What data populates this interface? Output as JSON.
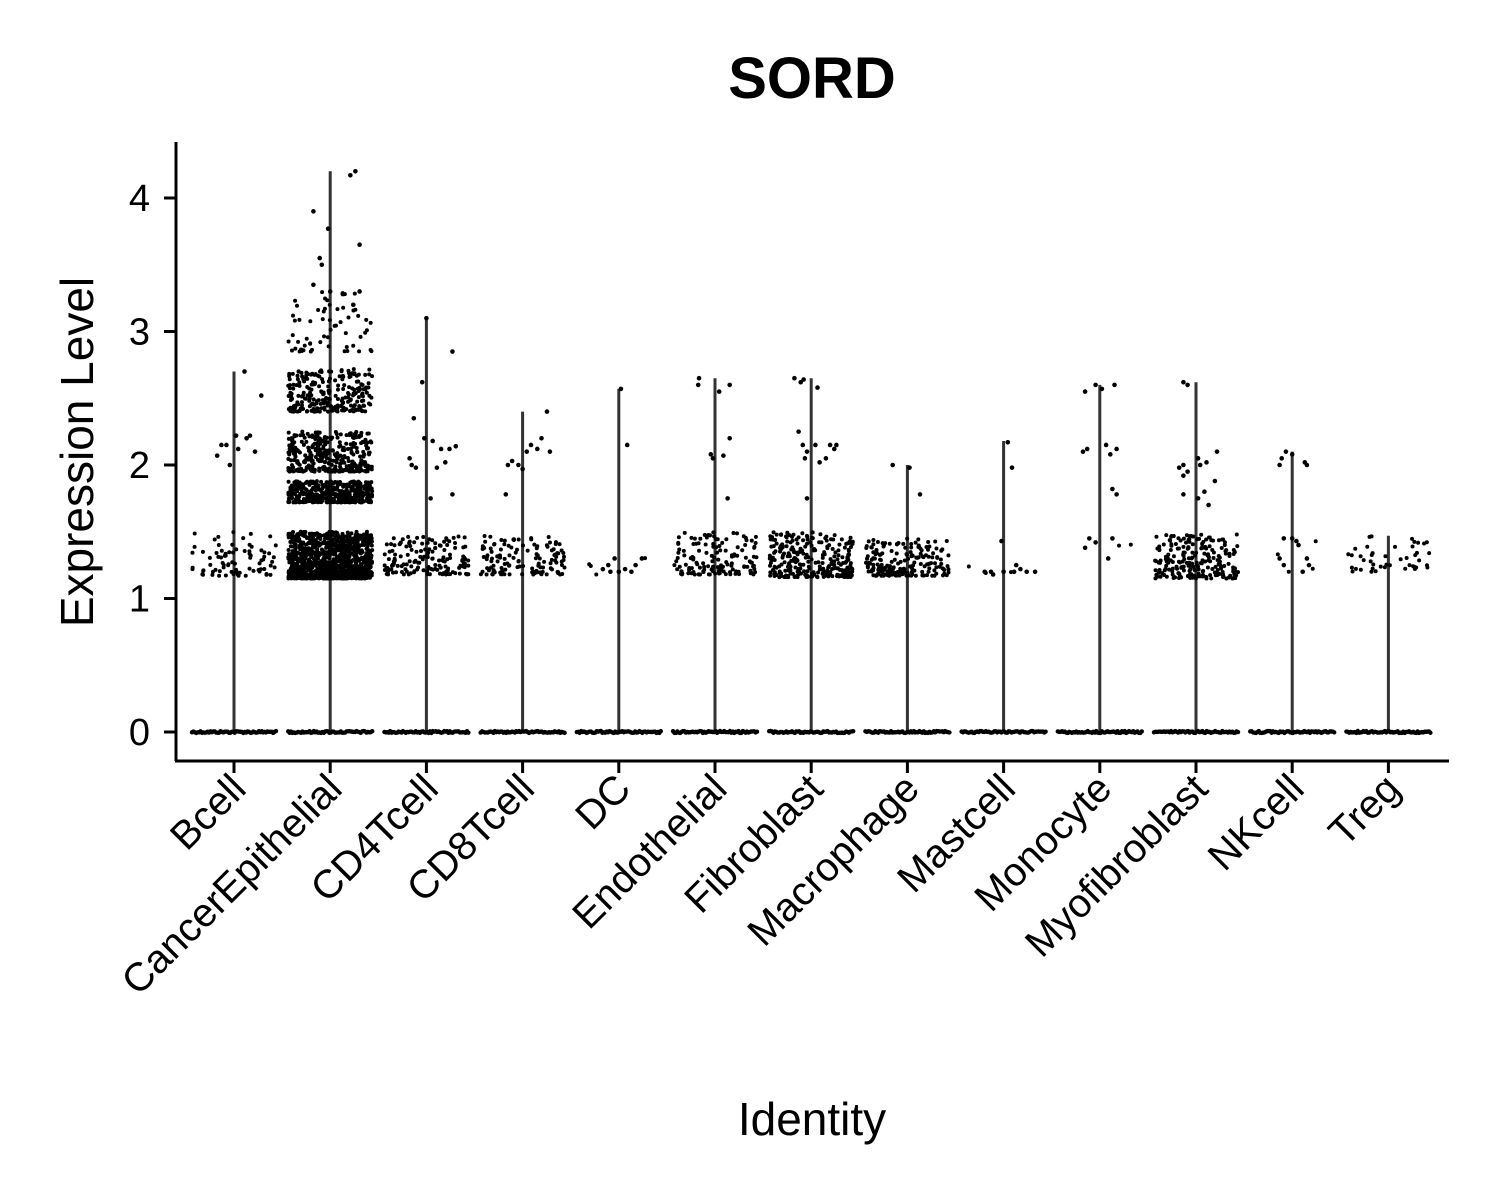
{
  "chart_data": {
    "type": "violin",
    "title": "SORD",
    "xlabel": "Identity",
    "ylabel": "Expression Level",
    "ylim": [
      -0.2,
      4.4
    ],
    "yticks": [
      0,
      1,
      2,
      3,
      4
    ],
    "grid": false,
    "legend": "none",
    "point_color": "#000000",
    "violin_color": "#333333",
    "categories": [
      "Bcell",
      "CancerEpithelial",
      "CD4Tcell",
      "CD8Tcell",
      "DC",
      "Endothelial",
      "Fibroblast",
      "Macrophage",
      "Mastcell",
      "Monocyte",
      "Myofibroblast",
      "NKcell",
      "Treg"
    ],
    "groups": [
      {
        "name": "Bcell",
        "max": 2.7,
        "points": [
          [
            0.25,
            2.7
          ],
          [
            -0.4,
            2.07
          ],
          [
            -0.3,
            2.15
          ],
          [
            -0.18,
            2.15
          ],
          [
            0.05,
            2.22
          ],
          [
            0.3,
            2.2
          ],
          [
            0.38,
            2.22
          ],
          [
            0.5,
            2.1
          ],
          [
            0.65,
            2.52
          ],
          [
            -0.1,
            2.0
          ],
          [
            0.1,
            2.12
          ]
        ],
        "cluster": {
          "lo": 1.17,
          "hi": 1.5,
          "n": 80
        }
      },
      {
        "name": "CancerEpithelial",
        "max": 4.2,
        "points": [
          [
            0.6,
            4.2
          ],
          [
            0.48,
            4.17
          ],
          [
            -0.4,
            3.9
          ],
          [
            -0.05,
            3.77
          ],
          [
            0.7,
            3.65
          ],
          [
            -0.2,
            3.5
          ],
          [
            -0.25,
            3.55
          ],
          [
            -0.4,
            3.35
          ],
          [
            0.0,
            3.3
          ],
          [
            0.3,
            3.28
          ],
          [
            0.55,
            3.2
          ],
          [
            0.7,
            3.3
          ]
        ],
        "clusters": [
          {
            "lo": 2.85,
            "hi": 3.3,
            "n": 60
          },
          {
            "lo": 2.4,
            "hi": 2.72,
            "n": 250
          },
          {
            "lo": 1.95,
            "hi": 2.25,
            "n": 350
          },
          {
            "lo": 1.72,
            "hi": 1.88,
            "n": 450
          },
          {
            "lo": 1.15,
            "hi": 1.5,
            "n": 1100
          }
        ]
      },
      {
        "name": "CD4Tcell",
        "max": 3.1,
        "points": [
          [
            0.0,
            3.1
          ],
          [
            0.62,
            2.85
          ],
          [
            -0.1,
            2.62
          ],
          [
            -0.3,
            2.35
          ],
          [
            -0.05,
            2.2
          ],
          [
            0.15,
            2.18
          ],
          [
            0.35,
            2.12
          ],
          [
            0.55,
            2.12
          ],
          [
            0.7,
            2.14
          ],
          [
            -0.4,
            2.05
          ],
          [
            -0.35,
            2.0
          ],
          [
            -0.25,
            1.98
          ],
          [
            0.25,
            1.98
          ],
          [
            0.45,
            2.02
          ],
          [
            0.1,
            1.75
          ],
          [
            0.62,
            1.78
          ]
        ],
        "cluster": {
          "lo": 1.18,
          "hi": 1.47,
          "n": 150
        }
      },
      {
        "name": "CD8Tcell",
        "max": 2.4,
        "points": [
          [
            0.58,
            2.4
          ],
          [
            0.45,
            2.2
          ],
          [
            0.2,
            2.15
          ],
          [
            0.35,
            2.12
          ],
          [
            0.1,
            2.1
          ],
          [
            0.65,
            2.1
          ],
          [
            -0.35,
            2.0
          ],
          [
            -0.25,
            2.03
          ],
          [
            -0.1,
            2.0
          ],
          [
            0.0,
            1.97
          ],
          [
            -0.4,
            1.78
          ]
        ],
        "cluster": {
          "lo": 1.18,
          "hi": 1.47,
          "n": 130
        }
      },
      {
        "name": "DC",
        "max": 2.57,
        "points": [
          [
            0.05,
            2.57
          ],
          [
            0.2,
            2.15
          ],
          [
            -0.38,
            1.22
          ],
          [
            -0.25,
            1.25
          ],
          [
            -0.2,
            1.2
          ],
          [
            -0.1,
            1.3
          ],
          [
            0.0,
            1.2
          ],
          [
            0.15,
            1.22
          ],
          [
            0.3,
            1.2
          ],
          [
            0.4,
            1.25
          ],
          [
            0.55,
            1.3
          ]
        ],
        "cluster": {
          "lo": 1.18,
          "hi": 1.32,
          "n": 4
        }
      },
      {
        "name": "Endothelial",
        "max": 2.65,
        "points": [
          [
            -0.38,
            2.65
          ],
          [
            -0.4,
            2.6
          ],
          [
            0.1,
            2.55
          ],
          [
            0.35,
            2.6
          ],
          [
            0.35,
            2.2
          ],
          [
            -0.1,
            2.08
          ],
          [
            -0.05,
            2.05
          ],
          [
            0.2,
            2.07
          ],
          [
            0.3,
            1.75
          ]
        ],
        "cluster": {
          "lo": 1.18,
          "hi": 1.5,
          "n": 140
        }
      },
      {
        "name": "Fibroblast",
        "max": 2.65,
        "points": [
          [
            -0.4,
            2.65
          ],
          [
            -0.25,
            2.62
          ],
          [
            -0.18,
            2.64
          ],
          [
            0.15,
            2.58
          ],
          [
            -0.3,
            2.25
          ],
          [
            -0.2,
            2.15
          ],
          [
            -0.15,
            2.05
          ],
          [
            -0.1,
            2.1
          ],
          [
            0.1,
            2.15
          ],
          [
            0.2,
            2.02
          ],
          [
            0.35,
            2.05
          ],
          [
            0.45,
            2.15
          ],
          [
            0.55,
            2.12
          ],
          [
            0.6,
            2.15
          ],
          [
            -0.1,
            1.75
          ]
        ],
        "cluster": {
          "lo": 1.16,
          "hi": 1.5,
          "n": 280
        }
      },
      {
        "name": "Macrophage",
        "max": 2.0,
        "points": [
          [
            -0.35,
            2.0
          ],
          [
            0.05,
            1.98
          ],
          [
            0.3,
            1.78
          ]
        ],
        "cluster": {
          "lo": 1.17,
          "hi": 1.45,
          "n": 190
        }
      },
      {
        "name": "Mastcell",
        "max": 2.18,
        "points": [
          [
            0.1,
            2.17
          ],
          [
            0.2,
            1.98
          ],
          [
            -0.45,
            1.2
          ],
          [
            -0.3,
            1.2
          ],
          [
            -0.25,
            1.18
          ],
          [
            -0.05,
            1.43
          ],
          [
            0.0,
            1.2
          ],
          [
            0.25,
            1.2
          ],
          [
            0.3,
            1.25
          ],
          [
            0.4,
            1.22
          ],
          [
            0.55,
            1.2
          ],
          [
            0.75,
            1.2
          ]
        ],
        "cluster": {
          "lo": 1.18,
          "hi": 1.25,
          "n": 3
        }
      },
      {
        "name": "Monocyte",
        "max": 2.6,
        "points": [
          [
            -0.35,
            2.55
          ],
          [
            -0.1,
            2.6
          ],
          [
            0.05,
            2.57
          ],
          [
            0.35,
            2.6
          ],
          [
            -0.4,
            2.1
          ],
          [
            -0.3,
            2.12
          ],
          [
            0.15,
            2.15
          ],
          [
            0.25,
            2.08
          ],
          [
            0.4,
            2.12
          ],
          [
            0.3,
            1.82
          ],
          [
            0.4,
            1.78
          ],
          [
            -0.35,
            1.38
          ],
          [
            -0.25,
            1.45
          ],
          [
            -0.1,
            1.42
          ],
          [
            0.3,
            1.45
          ],
          [
            0.2,
            1.3
          ]
        ],
        "cluster": {
          "lo": 1.3,
          "hi": 1.45,
          "n": 2
        }
      },
      {
        "name": "Myofibroblast",
        "max": 2.62,
        "points": [
          [
            -0.3,
            2.62
          ],
          [
            -0.2,
            2.6
          ],
          [
            -0.4,
            1.98
          ],
          [
            -0.3,
            2.0
          ],
          [
            -0.2,
            1.95
          ],
          [
            -0.3,
            1.92
          ],
          [
            0.05,
            2.05
          ],
          [
            0.1,
            2.0
          ],
          [
            0.25,
            2.02
          ],
          [
            0.5,
            2.1
          ],
          [
            0.05,
            1.75
          ],
          [
            0.2,
            1.8
          ],
          [
            0.3,
            1.7
          ],
          [
            0.45,
            1.88
          ],
          [
            -0.3,
            1.78
          ]
        ],
        "cluster": {
          "lo": 1.15,
          "hi": 1.48,
          "n": 220
        }
      },
      {
        "name": "NKcell",
        "max": 2.1,
        "points": [
          [
            -0.3,
            2.0
          ],
          [
            -0.25,
            2.05
          ],
          [
            -0.15,
            2.1
          ],
          [
            0.0,
            2.08
          ],
          [
            0.3,
            2.02
          ],
          [
            0.35,
            2.0
          ],
          [
            -0.3,
            1.3
          ],
          [
            -0.2,
            1.25
          ],
          [
            0.1,
            1.43
          ],
          [
            0.15,
            1.4
          ],
          [
            0.25,
            1.2
          ],
          [
            0.35,
            1.3
          ],
          [
            0.4,
            1.25
          ],
          [
            -0.2,
            1.45
          ],
          [
            0.0,
            1.45
          ]
        ],
        "cluster": {
          "lo": 1.2,
          "hi": 1.45,
          "n": 4
        }
      },
      {
        "name": "Treg",
        "max": 1.47,
        "points": [],
        "cluster": {
          "lo": 1.2,
          "hi": 1.47,
          "n": 45
        }
      }
    ]
  }
}
